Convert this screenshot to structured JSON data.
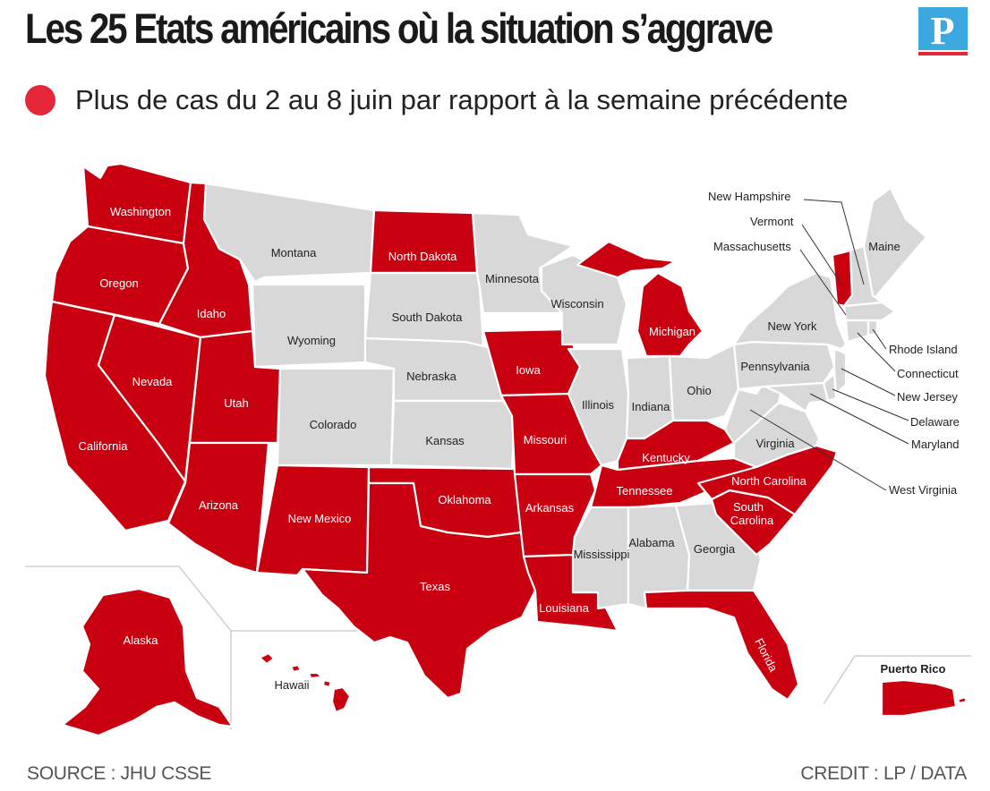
{
  "title": "Les 25 Etats américains où la situation s’aggrave",
  "logo_letter": "P",
  "legend": {
    "label": "Plus de cas du 2 au 8 juin par rapport à la semaine précédente",
    "color": "#e4283a"
  },
  "colors": {
    "worsening": "#c8000f",
    "other": "#d8d8d8"
  },
  "states": {
    "washington": "Washington",
    "oregon": "Oregon",
    "california": "California",
    "idaho": "Idaho",
    "nevada": "Nevada",
    "utah": "Utah",
    "arizona": "Arizona",
    "montana": "Montana",
    "wyoming": "Wyoming",
    "colorado": "Colorado",
    "new_mexico": "New Mexico",
    "north_dakota": "North Dakota",
    "south_dakota": "South Dakota",
    "nebraska": "Nebraska",
    "kansas": "Kansas",
    "oklahoma": "Oklahoma",
    "texas": "Texas",
    "minnesota": "Minnesota",
    "iowa": "Iowa",
    "missouri": "Missouri",
    "arkansas": "Arkansas",
    "louisiana": "Louisiana",
    "wisconsin": "Wisconsin",
    "illinois": "Illinois",
    "michigan": "Michigan",
    "indiana": "Indiana",
    "ohio": "Ohio",
    "kentucky": "Kentucky",
    "tennessee": "Tennessee",
    "mississippi": "Mississippi",
    "alabama": "Alabama",
    "georgia": "Georgia",
    "florida": "Florida",
    "south_carolina_1": "South",
    "south_carolina_2": "Carolina",
    "north_carolina": "North Carolina",
    "virginia": "Virginia",
    "west_virginia": "West Virginia",
    "pennsylvania": "Pennsylvania",
    "new_york": "New York",
    "maine": "Maine",
    "new_hampshire": "New Hampshire",
    "vermont": "Vermont",
    "massachusetts": "Massachusetts",
    "rhode_island": "Rhode Island",
    "connecticut": "Connecticut",
    "new_jersey": "New Jersey",
    "delaware": "Delaware",
    "maryland": "Maryland",
    "alaska": "Alaska",
    "hawaii": "Hawaii",
    "puerto_rico": "Puerto Rico"
  },
  "worsening_states": [
    "Washington",
    "Oregon",
    "California",
    "Idaho",
    "Nevada",
    "Utah",
    "Arizona",
    "New Mexico",
    "North Dakota",
    "Oklahoma",
    "Texas",
    "Iowa",
    "Missouri",
    "Arkansas",
    "Louisiana",
    "Michigan",
    "Kentucky",
    "Tennessee",
    "North Carolina",
    "South Carolina",
    "Florida",
    "Vermont",
    "Alaska",
    "Hawaii",
    "Puerto Rico"
  ],
  "footer": {
    "source": "SOURCE : JHU CSSE",
    "credit": "CREDIT : LP / DATA"
  }
}
